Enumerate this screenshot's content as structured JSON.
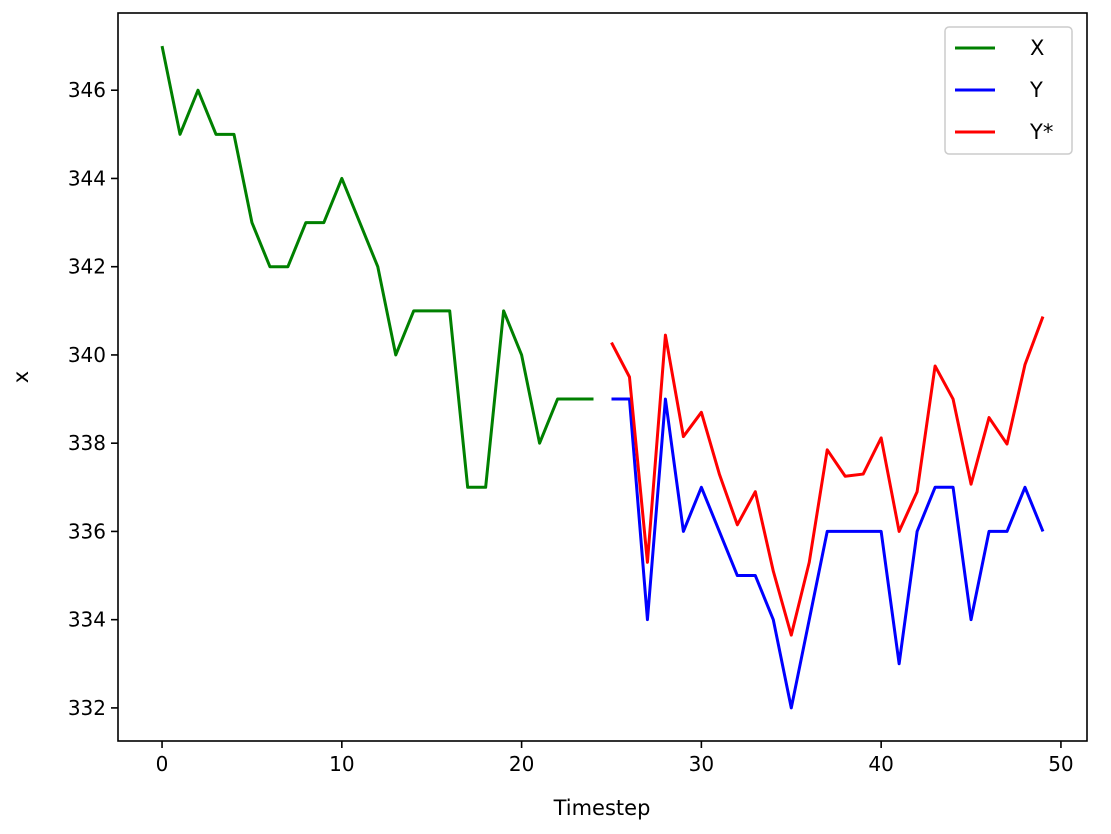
{
  "chart_data": {
    "type": "line",
    "title": "",
    "xlabel": "Timestep",
    "ylabel": "x",
    "xlim": [
      -2.45,
      51.45
    ],
    "ylim": [
      331.25,
      347.75
    ],
    "xticks": [
      0,
      10,
      20,
      30,
      40,
      50
    ],
    "yticks": [
      332,
      334,
      336,
      338,
      340,
      342,
      344,
      346
    ],
    "grid": false,
    "legend_position": "top-right",
    "series": [
      {
        "name": "X",
        "color": "#008000",
        "x": [
          0,
          1,
          2,
          3,
          4,
          5,
          6,
          7,
          8,
          9,
          10,
          11,
          12,
          13,
          14,
          15,
          16,
          17,
          18,
          19,
          20,
          21,
          22,
          23,
          24
        ],
        "y": [
          347,
          345,
          346,
          345,
          345,
          343,
          342,
          342,
          343,
          343,
          344,
          343,
          342,
          340,
          341,
          341,
          341,
          337,
          337,
          341,
          340,
          338,
          339,
          339,
          339
        ]
      },
      {
        "name": "Y",
        "color": "#0000ff",
        "x": [
          25,
          26,
          27,
          28,
          29,
          30,
          31,
          32,
          33,
          34,
          35,
          36,
          37,
          38,
          39,
          40,
          41,
          42,
          43,
          44,
          45,
          46,
          47,
          48,
          49
        ],
        "y": [
          339,
          339,
          334,
          339,
          336,
          337,
          336,
          335,
          335,
          334,
          332,
          334,
          336,
          336,
          336,
          336,
          333,
          336,
          337,
          337,
          334,
          336,
          336,
          337,
          336
        ]
      },
      {
        "name": "Y*",
        "color": "#ff0000",
        "x": [
          25,
          26,
          27,
          28,
          29,
          30,
          31,
          32,
          33,
          34,
          35,
          36,
          37,
          38,
          39,
          40,
          41,
          42,
          43,
          44,
          45,
          46,
          47,
          48,
          49
        ],
        "y": [
          340.28,
          339.5,
          335.3,
          340.45,
          338.15,
          338.7,
          337.3,
          336.15,
          336.9,
          335.1,
          333.65,
          335.3,
          337.85,
          337.25,
          337.3,
          338.12,
          336.0,
          336.9,
          339.75,
          339.0,
          337.07,
          338.58,
          337.98,
          339.78,
          340.87
        ]
      }
    ]
  }
}
